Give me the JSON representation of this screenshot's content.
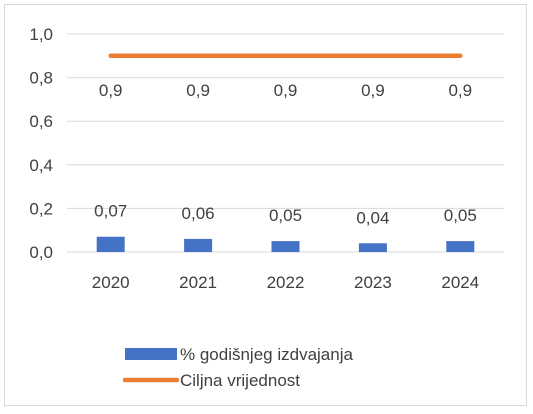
{
  "chart_data": {
    "type": "bar",
    "categories": [
      "2020",
      "2021",
      "2022",
      "2023",
      "2024"
    ],
    "series": [
      {
        "name": "% godišnjeg izdvajanja",
        "type": "bar",
        "values": [
          0.07,
          0.06,
          0.05,
          0.04,
          0.05
        ],
        "labels": [
          "0,07",
          "0,06",
          "0,05",
          "0,04",
          "0,05"
        ],
        "color": "#4472C4"
      },
      {
        "name": "Ciljna vrijednost",
        "type": "line",
        "values": [
          0.9,
          0.9,
          0.9,
          0.9,
          0.9
        ],
        "labels": [
          "0,9",
          "0,9",
          "0,9",
          "0,9",
          "0,9"
        ],
        "color": "#ED7D31"
      }
    ],
    "ylim": [
      0,
      1.0
    ],
    "yticks": [
      0.0,
      0.2,
      0.4,
      0.6,
      0.8,
      1.0
    ],
    "ytick_labels": [
      "0,0",
      "0,2",
      "0,4",
      "0,6",
      "0,8",
      "1,0"
    ],
    "grid": true,
    "legend_position": "bottom"
  }
}
